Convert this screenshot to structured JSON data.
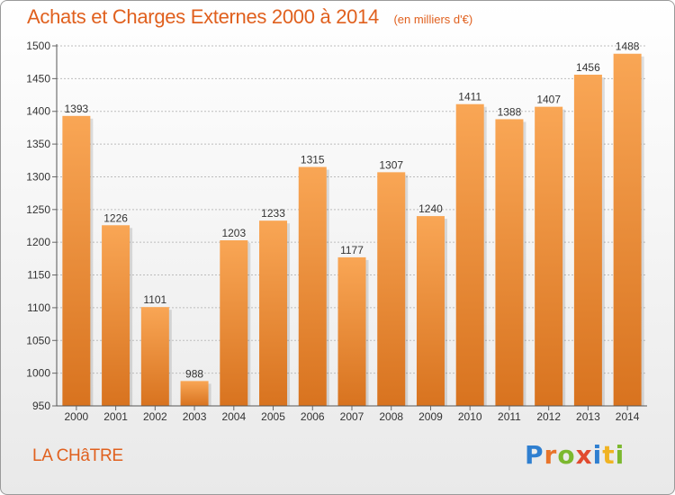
{
  "title": "Achats et Charges Externes 2000 à 2014",
  "unit_note": "(en milliers d'€)",
  "commune": "LA CHâTRE",
  "logo": {
    "text": "Proxiti",
    "letters": [
      {
        "char": "P",
        "color": "#2f7fd0"
      },
      {
        "char": "r",
        "color": "#e8742a"
      },
      {
        "char": "o",
        "color": "#7cb82f"
      },
      {
        "char": "x",
        "color": "#e14a2f"
      },
      {
        "char": "i",
        "color": "#2f7fd0"
      },
      {
        "char": "t",
        "color": "#f0b323"
      },
      {
        "char": "i",
        "color": "#7cb82f"
      }
    ]
  },
  "colors": {
    "accent": "#e0601e",
    "bar_top": "#f9a655",
    "bar_bottom": "#d8731f",
    "axis_text": "#333333"
  },
  "chart_data": {
    "type": "bar",
    "categories": [
      "2000",
      "2001",
      "2002",
      "2003",
      "2004",
      "2005",
      "2006",
      "2007",
      "2008",
      "2009",
      "2010",
      "2011",
      "2012",
      "2013",
      "2014"
    ],
    "values": [
      1393,
      1226,
      1101,
      988,
      1203,
      1233,
      1315,
      1177,
      1307,
      1240,
      1411,
      1388,
      1407,
      1456,
      1488
    ],
    "ylim": [
      950,
      1500
    ],
    "yticks": [
      950,
      1000,
      1050,
      1100,
      1150,
      1200,
      1250,
      1300,
      1350,
      1400,
      1450,
      1500
    ],
    "grid": true,
    "data_labels": true
  }
}
